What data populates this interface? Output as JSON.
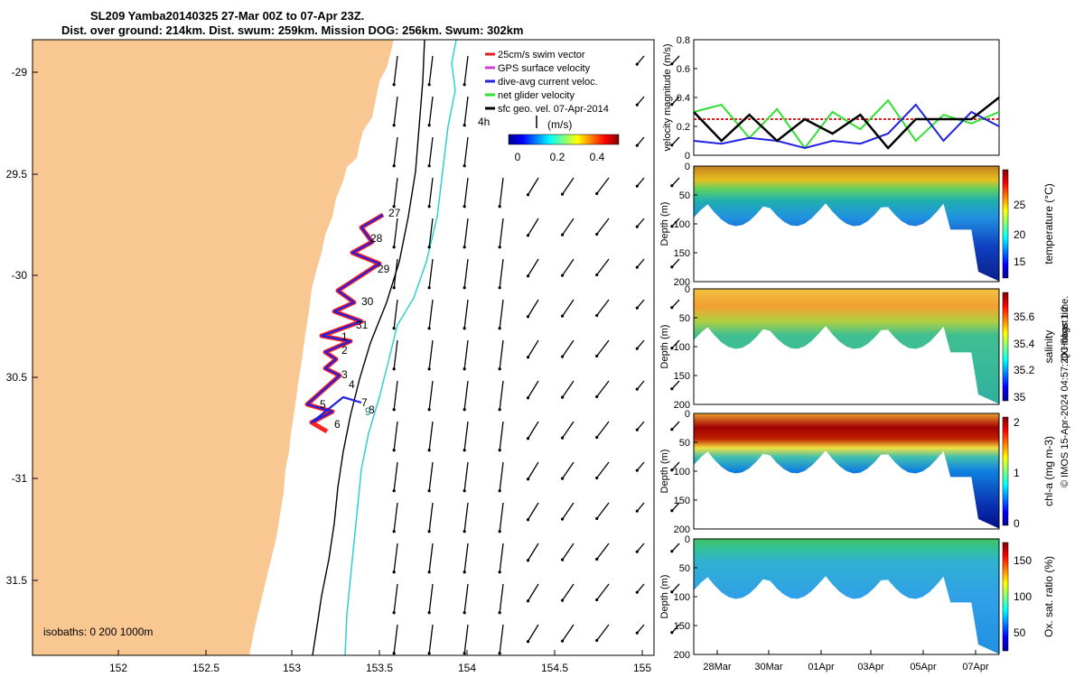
{
  "header": {
    "title_line1": "SL209 Yamba20140325 27-Mar 00Z to 07-Apr 23Z.",
    "title_line2": "Dist. over ground: 214km. Dist. swum: 259km. Mission DOG: 256km. Swum: 302km"
  },
  "map": {
    "legend": [
      {
        "label": "25cm/s swim vector",
        "color": "#e02020"
      },
      {
        "label": "GPS surface velocity",
        "color": "#d040d0"
      },
      {
        "label": "dive-avg current veloc.",
        "color": "#2020e0"
      },
      {
        "label": "net glider velocity",
        "color": "#30e030"
      },
      {
        "label": "sfc geo. vel. 07-Apr-2014",
        "color": "#000000"
      }
    ],
    "arrow_key_label": "4h",
    "colorbar_unit": "(m/s)",
    "colorbar_ticks": [
      "0",
      "0.2",
      "0.4"
    ],
    "isobaths_label": "isobaths: 0   200  1000m",
    "lat_ticks": [
      "-29",
      "29.5",
      "-30",
      "30.5",
      "-31",
      "31.5"
    ],
    "lon_ticks": [
      "152",
      "152.5",
      "153",
      "153.5",
      "154",
      "154.5",
      "155"
    ],
    "day_labels": [
      "27",
      "28",
      "29",
      "30",
      "31",
      "1",
      "2",
      "3",
      "4",
      "5",
      "6",
      "7",
      "8",
      "9"
    ]
  },
  "chart_data": [
    {
      "type": "line",
      "title": "",
      "ylabel": "velocity magnitude (m/s)",
      "ylim": [
        0,
        0.8
      ],
      "yticks": [
        "0",
        "0.2",
        "0.4",
        "0.6",
        "0.8"
      ],
      "series": [
        {
          "name": "25cm/s swim vector",
          "color": "#e02020",
          "values": [
            0.25,
            0.25,
            0.25,
            0.25,
            0.25,
            0.25,
            0.25,
            0.25,
            0.25,
            0.25,
            0.25,
            0.25
          ]
        },
        {
          "name": "net glider velocity",
          "color": "#30e030",
          "values": [
            0.3,
            0.35,
            0.12,
            0.32,
            0.05,
            0.3,
            0.18,
            0.38,
            0.1,
            0.28,
            0.22,
            0.3
          ]
        },
        {
          "name": "dive-avg current veloc.",
          "color": "#2020e0",
          "values": [
            0.1,
            0.08,
            0.12,
            0.1,
            0.05,
            0.1,
            0.08,
            0.15,
            0.35,
            0.1,
            0.3,
            0.2
          ]
        },
        {
          "name": "GPS surface velocity",
          "color": "#000000",
          "values": [
            0.3,
            0.1,
            0.28,
            0.1,
            0.25,
            0.15,
            0.28,
            0.05,
            0.25,
            0.25,
            0.25,
            0.4
          ]
        }
      ]
    },
    {
      "type": "heatmap",
      "ylabel": "Depth (m)",
      "yticks": [
        "0",
        "50",
        "100",
        "150",
        "200"
      ],
      "colorbar_label": "temperature (°C)",
      "colorbar_ticks": [
        "15",
        "20",
        "25"
      ]
    },
    {
      "type": "heatmap",
      "ylabel": "Depth (m)",
      "yticks": [
        "0",
        "50",
        "100",
        "150",
        "200"
      ],
      "colorbar_label": "salinity",
      "colorbar_ticks": [
        "35",
        "35.2",
        "35.4",
        "35.6"
      ]
    },
    {
      "type": "heatmap",
      "ylabel": "Depth (m)",
      "yticks": [
        "0",
        "50",
        "100",
        "150",
        "200"
      ],
      "colorbar_label": "chl-a (mg m-3)",
      "colorbar_ticks": [
        "0",
        "1",
        "2"
      ]
    },
    {
      "type": "heatmap",
      "ylabel": "Depth (m)",
      "yticks": [
        "0",
        "50",
        "100",
        "150",
        "200"
      ],
      "colorbar_label": "Ox. sat. ratio (%)",
      "colorbar_ticks": [
        "50",
        "100",
        "150"
      ],
      "xticks": [
        "28Mar",
        "30Mar",
        "01Apr",
        "03Apr",
        "05Apr",
        "07Apr"
      ]
    }
  ],
  "side_text": {
    "qc_flags": "QC flags 1  2",
    "credit": "© IMOS 15-Apr-2024 04:57:20 Hobart time."
  }
}
